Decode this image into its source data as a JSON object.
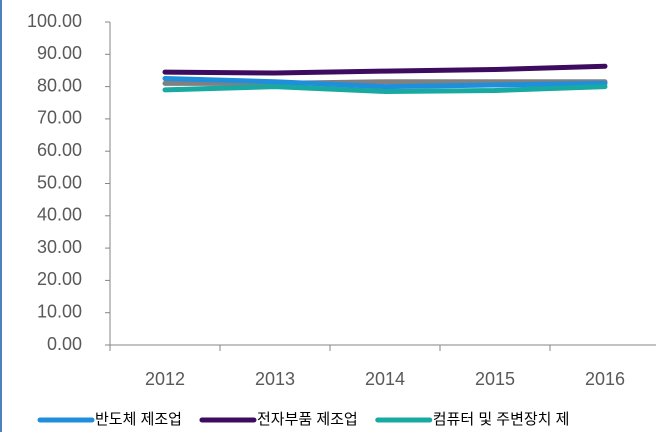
{
  "chart_data": {
    "type": "line",
    "categories": [
      "2012",
      "2013",
      "2014",
      "2015",
      "2016"
    ],
    "series": [
      {
        "name": "반도체 제조업",
        "color": "#1f8fdc",
        "values": [
          82.5,
          81.5,
          80.0,
          80.5,
          81.0
        ]
      },
      {
        "name": "전자부품 제조업",
        "color": "#3d0c5f",
        "values": [
          84.5,
          84.2,
          84.8,
          85.3,
          86.3
        ]
      },
      {
        "name": "컴퓨터 및 주변장치 제",
        "color": "#17a9a2",
        "values": [
          79.0,
          80.0,
          78.5,
          78.8,
          80.0
        ]
      },
      {
        "color": "#808080",
        "values": [
          81.0,
          81.0,
          81.5,
          81.5,
          81.5
        ]
      }
    ],
    "ylim": [
      0,
      100
    ],
    "yticks": [
      {
        "value": 0,
        "label": "0.00"
      },
      {
        "value": 10,
        "label": "10.00"
      },
      {
        "value": 20,
        "label": "20.00"
      },
      {
        "value": 30,
        "label": "30.00"
      },
      {
        "value": 40,
        "label": "40.00"
      },
      {
        "value": 50,
        "label": "50.00"
      },
      {
        "value": 60,
        "label": "60.00"
      },
      {
        "value": 70,
        "label": "70.00"
      },
      {
        "value": 80,
        "label": "80.00"
      },
      {
        "value": 90,
        "label": "90.00"
      },
      {
        "value": 100,
        "label": "100.00"
      }
    ]
  }
}
